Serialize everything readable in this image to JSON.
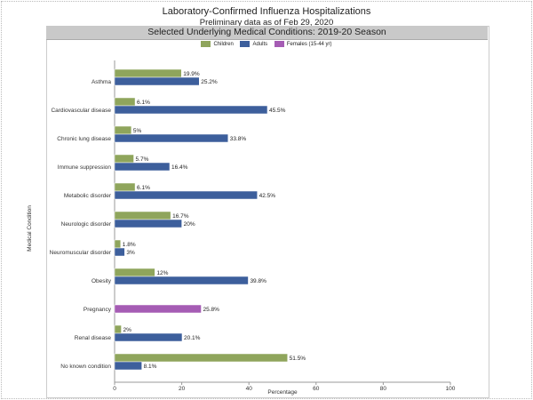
{
  "header": {
    "title": "Laboratory-Confirmed Influenza Hospitalizations",
    "subtitle": "Preliminary data as of Feb 29, 2020",
    "band_title": "Selected Underlying Medical Conditions: 2019-20 Season"
  },
  "chart_data": {
    "type": "bar",
    "orientation": "horizontal",
    "title": "Selected Underlying Medical Conditions: 2019-20 Season",
    "xlabel": "Percentage",
    "ylabel": "Medical Condition",
    "xlim": [
      0,
      100
    ],
    "xticks": [
      "0",
      "20",
      "40",
      "60",
      "80",
      "100"
    ],
    "grid": false,
    "legend_position": "top",
    "categories": [
      "Asthma",
      "Cardiovascular disease",
      "Chronic lung disease",
      "Immune suppression",
      "Metabolic disorder",
      "Neurologic disorder",
      "Neuromuscular disorder",
      "Obesity",
      "Pregnancy",
      "Renal disease",
      "No known condition"
    ],
    "series": [
      {
        "name": "Children",
        "color": "#8fa55c",
        "values": [
          19.9,
          6.1,
          5,
          5.7,
          6.1,
          16.7,
          1.8,
          12,
          null,
          2,
          51.5
        ],
        "labels": [
          "19.9%",
          "6.1%",
          "5%",
          "5.7%",
          "6.1%",
          "16.7%",
          "1.8%",
          "12%",
          null,
          "2%",
          "51.5%"
        ]
      },
      {
        "name": "Adults",
        "color": "#3d5f9c",
        "values": [
          25.2,
          45.5,
          33.8,
          16.4,
          42.5,
          20,
          3,
          39.8,
          null,
          20.1,
          8.1
        ],
        "labels": [
          "25.2%",
          "45.5%",
          "33.8%",
          "16.4%",
          "42.5%",
          "20%",
          "3%",
          "39.8%",
          null,
          "20.1%",
          "8.1%"
        ]
      },
      {
        "name": "Females (15-44 yr)",
        "color": "#a55cb4",
        "values": [
          null,
          null,
          null,
          null,
          null,
          null,
          null,
          null,
          25.8,
          null,
          null
        ],
        "labels": [
          null,
          null,
          null,
          null,
          null,
          null,
          null,
          null,
          "25.8%",
          null,
          null
        ]
      }
    ]
  }
}
